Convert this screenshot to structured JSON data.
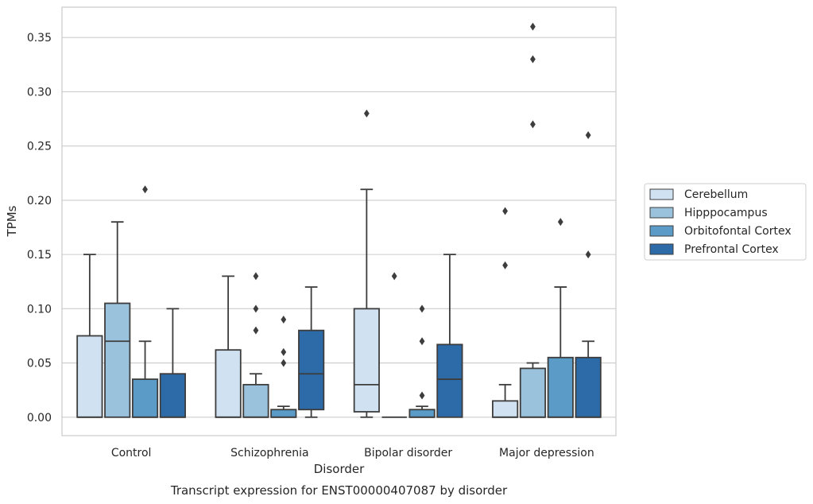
{
  "chart_data": {
    "type": "box",
    "title": "Transcript expression for ENST00000407087 by disorder",
    "xlabel": "Disorder",
    "ylabel": "TPMs",
    "ylim": [
      -0.017,
      0.378
    ],
    "yticks": [
      "0.00",
      "0.05",
      "0.10",
      "0.15",
      "0.20",
      "0.25",
      "0.30",
      "0.35"
    ],
    "grid": true,
    "legend_position": "right",
    "categories": [
      "Control",
      "Schizophrenia",
      "Bipolar disorder",
      "Major depression"
    ],
    "series": [
      {
        "name": "Cerebellum",
        "color": "#d0e1f2",
        "boxes": [
          {
            "whisker_low": 0.0,
            "q1": 0.0,
            "median": 0.0,
            "q3": 0.075,
            "whisker_high": 0.15,
            "outliers": []
          },
          {
            "whisker_low": 0.0,
            "q1": 0.0,
            "median": 0.0,
            "q3": 0.062,
            "whisker_high": 0.13,
            "outliers": []
          },
          {
            "whisker_low": 0.0,
            "q1": 0.005,
            "median": 0.03,
            "q3": 0.1,
            "whisker_high": 0.21,
            "outliers": [
              0.28
            ]
          },
          {
            "whisker_low": 0.0,
            "q1": 0.0,
            "median": 0.0,
            "q3": 0.015,
            "whisker_high": 0.03,
            "outliers": [
              0.14,
              0.19
            ]
          }
        ]
      },
      {
        "name": "Hipppocampus",
        "color": "#9ac2dc",
        "boxes": [
          {
            "whisker_low": 0.0,
            "q1": 0.0,
            "median": 0.07,
            "q3": 0.105,
            "whisker_high": 0.18,
            "outliers": []
          },
          {
            "whisker_low": 0.0,
            "q1": 0.0,
            "median": 0.0,
            "q3": 0.03,
            "whisker_high": 0.04,
            "outliers": [
              0.08,
              0.1,
              0.13
            ]
          },
          {
            "whisker_low": 0.0,
            "q1": 0.0,
            "median": 0.0,
            "q3": 0.0,
            "whisker_high": 0.0,
            "outliers": [
              0.13
            ]
          },
          {
            "whisker_low": 0.0,
            "q1": 0.0,
            "median": 0.0,
            "q3": 0.045,
            "whisker_high": 0.05,
            "outliers": [
              0.27,
              0.33,
              0.36
            ]
          }
        ]
      },
      {
        "name": "Orbitofontal Cortex",
        "color": "#5a9bc8",
        "boxes": [
          {
            "whisker_low": 0.0,
            "q1": 0.0,
            "median": 0.0,
            "q3": 0.035,
            "whisker_high": 0.07,
            "outliers": [
              0.21
            ]
          },
          {
            "whisker_low": 0.0,
            "q1": 0.0,
            "median": 0.0,
            "q3": 0.007,
            "whisker_high": 0.01,
            "outliers": [
              0.05,
              0.06,
              0.09
            ]
          },
          {
            "whisker_low": 0.0,
            "q1": 0.0,
            "median": 0.0,
            "q3": 0.007,
            "whisker_high": 0.01,
            "outliers": [
              0.02,
              0.07,
              0.1
            ]
          },
          {
            "whisker_low": 0.0,
            "q1": 0.0,
            "median": 0.0,
            "q3": 0.055,
            "whisker_high": 0.12,
            "outliers": [
              0.18
            ]
          }
        ]
      },
      {
        "name": "Prefrontal Cortex",
        "color": "#2c6aa8",
        "boxes": [
          {
            "whisker_low": 0.0,
            "q1": 0.0,
            "median": 0.0,
            "q3": 0.04,
            "whisker_high": 0.1,
            "outliers": []
          },
          {
            "whisker_low": 0.0,
            "q1": 0.007,
            "median": 0.04,
            "q3": 0.08,
            "whisker_high": 0.12,
            "outliers": []
          },
          {
            "whisker_low": 0.0,
            "q1": 0.0,
            "median": 0.035,
            "q3": 0.067,
            "whisker_high": 0.15,
            "outliers": []
          },
          {
            "whisker_low": 0.0,
            "q1": 0.0,
            "median": 0.0,
            "q3": 0.055,
            "whisker_high": 0.07,
            "outliers": [
              0.15,
              0.26
            ]
          }
        ]
      }
    ]
  }
}
